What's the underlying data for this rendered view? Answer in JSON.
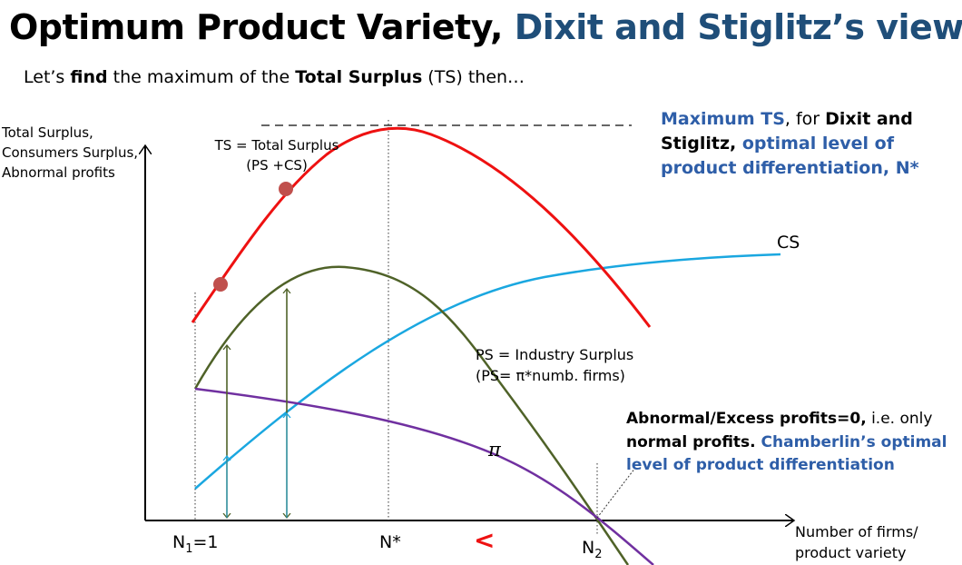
{
  "title": {
    "part1": "Optimum Product Variety, ",
    "part2": "Dixit and Stiglitz’s view"
  },
  "subtitle": {
    "s1": "Let’s ",
    "s2": "find",
    "s3": " the maximum of the ",
    "s4": "Total Surplus",
    "s5": " (TS) then…"
  },
  "y_axis_label": [
    "Total Surplus,",
    "Consumers Surplus,",
    "Abnormal profits"
  ],
  "x_axis_label": [
    "Number of firms/",
    "product variety"
  ],
  "curve_labels": {
    "ts_line1": "TS = Total Surplus",
    "ts_line2": "(PS +CS)",
    "cs": "CS",
    "ps_line1": "PS = Industry Surplus",
    "ps_line2": "(PS= π*numb. firms)",
    "pi": "π"
  },
  "x_ticks": {
    "n1_base": "N",
    "n1_sub": "1",
    "n1_rest": "=1",
    "nstar": "N*",
    "less_than": "<",
    "n2_base": "N",
    "n2_sub": "2"
  },
  "callout_dixit": {
    "a": "Maximum TS",
    "b": ", for ",
    "c": "Dixit and Stiglitz,",
    "d": " optimal level of product differentiation, N*"
  },
  "callout_chamberlin": {
    "a": "Abnormal/Excess profits=0,",
    "b": " i.e. only ",
    "c": "normal profits.",
    "d": " Chamberlin’s optimal level of product differentiation"
  },
  "colors": {
    "ts": "#ee1111",
    "cs": "#1aa7e0",
    "ps": "#4f6228",
    "pi": "#7030a0",
    "accent_blue": "#2e5ea8",
    "less_than": "#ee1111"
  }
}
